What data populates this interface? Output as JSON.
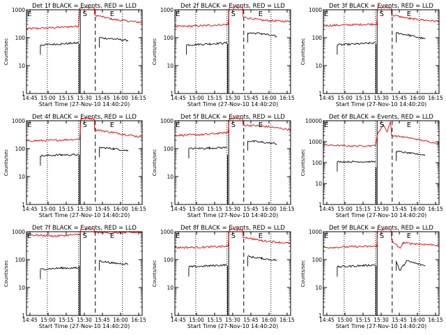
{
  "shared": {
    "ylabel": "Counts/sec",
    "xlabel": "Start Time (27-Nov-10 14:40:20)",
    "x_ticks": [
      "14:45",
      "15:00",
      "15:15",
      "15:30",
      "15:45",
      "16:00",
      "16:15"
    ],
    "marker_labels": [
      "E",
      "S",
      "E"
    ],
    "colors": {
      "events": "#000000",
      "lld": "#e00000"
    }
  },
  "chart_data": [
    {
      "type": "line",
      "title": "Det 1f BLACK = Events, RED = LLD",
      "yscale": "log",
      "ylim": [
        1,
        1000
      ],
      "y_ticks": [
        "1",
        "10",
        "100",
        "1000"
      ],
      "series": [
        {
          "color": "#e00000",
          "points": [
            [
              0.0,
              210
            ],
            [
              0.25,
              230
            ],
            [
              0.45,
              260
            ],
            [
              0.46,
              1200
            ],
            [
              0.585,
              1200
            ],
            [
              0.59,
              650
            ],
            [
              0.75,
              450
            ],
            [
              1.0,
              350
            ]
          ]
        },
        {
          "color": "#000000",
          "points": [
            [
              0.12,
              55
            ],
            [
              0.3,
              60
            ],
            [
              0.45,
              65
            ]
          ]
        },
        {
          "color": "#000000",
          "points": [
            [
              0.63,
              100
            ],
            [
              0.75,
              90
            ],
            [
              0.88,
              80
            ]
          ]
        }
      ]
    },
    {
      "type": "line",
      "title": "Det 2f BLACK = Events, RED = LLD",
      "yscale": "log",
      "ylim": [
        1,
        1000
      ],
      "y_ticks": [
        "1",
        "10",
        "100",
        "1000"
      ],
      "series": [
        {
          "color": "#e00000",
          "points": [
            [
              0.0,
              250
            ],
            [
              0.25,
              270
            ],
            [
              0.46,
              300
            ],
            [
              0.47,
              1200
            ],
            [
              0.585,
              1200
            ],
            [
              0.59,
              550
            ],
            [
              0.75,
              420
            ],
            [
              1.0,
              380
            ]
          ]
        },
        {
          "color": "#000000",
          "points": [
            [
              0.1,
              55
            ],
            [
              0.3,
              60
            ],
            [
              0.45,
              65
            ]
          ]
        },
        {
          "color": "#000000",
          "points": [
            [
              0.63,
              150
            ],
            [
              0.75,
              140
            ],
            [
              0.88,
              110
            ]
          ]
        }
      ]
    },
    {
      "type": "line",
      "title": "Det 3f BLACK = Events, RED = LLD",
      "yscale": "log",
      "ylim": [
        1,
        1000
      ],
      "y_ticks": [
        "1",
        "10",
        "100",
        "1000"
      ],
      "series": [
        {
          "color": "#e00000",
          "points": [
            [
              0.0,
              270
            ],
            [
              0.25,
              290
            ],
            [
              0.46,
              310
            ],
            [
              0.47,
              1200
            ],
            [
              0.585,
              1200
            ],
            [
              0.59,
              650
            ],
            [
              0.75,
              480
            ],
            [
              1.0,
              380
            ]
          ]
        },
        {
          "color": "#000000",
          "points": [
            [
              0.12,
              55
            ],
            [
              0.3,
              60
            ],
            [
              0.45,
              65
            ]
          ]
        },
        {
          "color": "#000000",
          "points": [
            [
              0.63,
              150
            ],
            [
              0.75,
              120
            ],
            [
              0.88,
              90
            ]
          ]
        }
      ]
    },
    {
      "type": "line",
      "title": "Det 4f BLACK = Events, RED = LLD",
      "yscale": "log",
      "ylim": [
        1,
        1000
      ],
      "y_ticks": [
        "1",
        "10",
        "100",
        "1000"
      ],
      "series": [
        {
          "color": "#e00000",
          "points": [
            [
              0.0,
              190
            ],
            [
              0.25,
              200
            ],
            [
              0.46,
              220
            ],
            [
              0.47,
              1200
            ],
            [
              0.585,
              1200
            ],
            [
              0.59,
              480
            ],
            [
              0.75,
              380
            ],
            [
              1.0,
              260
            ]
          ]
        },
        {
          "color": "#000000",
          "points": [
            [
              0.12,
              55
            ],
            [
              0.3,
              60
            ],
            [
              0.45,
              60
            ]
          ]
        },
        {
          "color": "#000000",
          "points": [
            [
              0.63,
              110
            ],
            [
              0.75,
              100
            ],
            [
              0.88,
              85
            ]
          ]
        }
      ]
    },
    {
      "type": "line",
      "title": "Det 5f BLACK = Events, RED = LLD",
      "yscale": "log",
      "ylim": [
        1,
        1000
      ],
      "y_ticks": [
        "1",
        "10",
        "100",
        "1000"
      ],
      "series": [
        {
          "color": "#e00000",
          "points": [
            [
              0.0,
              300
            ],
            [
              0.25,
              320
            ],
            [
              0.46,
              380
            ],
            [
              0.47,
              1200
            ],
            [
              0.585,
              1200
            ],
            [
              0.59,
              700
            ],
            [
              0.75,
              650
            ],
            [
              1.0,
              480
            ]
          ]
        },
        {
          "color": "#000000",
          "points": [
            [
              0.12,
              100
            ],
            [
              0.3,
              105
            ],
            [
              0.45,
              110
            ]
          ]
        },
        {
          "color": "#000000",
          "points": [
            [
              0.63,
              190
            ],
            [
              0.75,
              170
            ],
            [
              0.88,
              150
            ]
          ]
        }
      ]
    },
    {
      "type": "line",
      "title": "Det 6f BLACK = Events, RED = LLD",
      "yscale": "log",
      "ylim": [
        1,
        10000
      ],
      "y_ticks": [
        "1",
        "10",
        "100",
        "1000",
        "10000"
      ],
      "series": [
        {
          "color": "#e00000",
          "points": [
            [
              0.0,
              700
            ],
            [
              0.25,
              620
            ],
            [
              0.45,
              650
            ],
            [
              0.47,
              2500
            ],
            [
              0.52,
              6500
            ],
            [
              0.55,
              3000
            ],
            [
              0.58,
              9000
            ],
            [
              0.59,
              2000
            ],
            [
              0.75,
              1500
            ],
            [
              1.0,
              800
            ]
          ]
        },
        {
          "color": "#000000",
          "points": [
            [
              0.12,
              110
            ],
            [
              0.3,
              110
            ],
            [
              0.45,
              110
            ]
          ]
        },
        {
          "color": "#000000",
          "points": [
            [
              0.63,
              350
            ],
            [
              0.75,
              280
            ],
            [
              0.88,
              230
            ]
          ]
        }
      ]
    },
    {
      "type": "line",
      "title": "Det 7f BLACK = Events, RED = LLD",
      "yscale": "log",
      "ylim": [
        1,
        1000
      ],
      "y_ticks": [
        "1",
        "10",
        "100",
        "1000"
      ],
      "series": [
        {
          "color": "#e00000",
          "points": [
            [
              0.0,
              780
            ],
            [
              0.25,
              700
            ],
            [
              0.46,
              800
            ],
            [
              0.47,
              1200
            ],
            [
              0.585,
              1200
            ],
            [
              0.59,
              950
            ],
            [
              0.75,
              900
            ],
            [
              1.0,
              950
            ]
          ]
        },
        {
          "color": "#000000",
          "points": [
            [
              0.12,
              45
            ],
            [
              0.3,
              50
            ],
            [
              0.45,
              50
            ]
          ]
        },
        {
          "color": "#000000",
          "points": [
            [
              0.63,
              90
            ],
            [
              0.75,
              75
            ],
            [
              0.88,
              70
            ]
          ]
        }
      ]
    },
    {
      "type": "line",
      "title": "Det 8f BLACK = Events, RED = LLD",
      "yscale": "log",
      "ylim": [
        1,
        1000
      ],
      "y_ticks": [
        "1",
        "10",
        "100",
        "1000"
      ],
      "series": [
        {
          "color": "#e00000",
          "points": [
            [
              0.0,
              270
            ],
            [
              0.25,
              280
            ],
            [
              0.46,
              300
            ],
            [
              0.47,
              1200
            ],
            [
              0.585,
              1200
            ],
            [
              0.59,
              650
            ],
            [
              0.75,
              480
            ],
            [
              1.0,
              380
            ]
          ]
        },
        {
          "color": "#000000",
          "points": [
            [
              0.12,
              55
            ],
            [
              0.3,
              60
            ],
            [
              0.45,
              65
            ]
          ]
        },
        {
          "color": "#000000",
          "points": [
            [
              0.63,
              130
            ],
            [
              0.75,
              110
            ],
            [
              0.88,
              95
            ]
          ]
        }
      ]
    },
    {
      "type": "line",
      "title": "Det 9f BLACK = Events, RED = LLD",
      "yscale": "log",
      "ylim": [
        1,
        1000
      ],
      "y_ticks": [
        "1",
        "10",
        "100",
        "1000"
      ],
      "series": [
        {
          "color": "#e00000",
          "points": [
            [
              0.0,
              270
            ],
            [
              0.25,
              290
            ],
            [
              0.46,
              300
            ],
            [
              0.47,
              1200
            ],
            [
              0.585,
              1200
            ],
            [
              0.59,
              500
            ],
            [
              0.66,
              250
            ],
            [
              0.69,
              400
            ],
            [
              0.75,
              380
            ],
            [
              1.0,
              330
            ]
          ]
        },
        {
          "color": "#000000",
          "points": [
            [
              0.12,
              55
            ],
            [
              0.3,
              60
            ],
            [
              0.45,
              65
            ]
          ]
        },
        {
          "color": "#000000",
          "points": [
            [
              0.63,
              90
            ],
            [
              0.66,
              40
            ],
            [
              0.72,
              90
            ],
            [
              0.88,
              60
            ]
          ]
        }
      ]
    }
  ]
}
